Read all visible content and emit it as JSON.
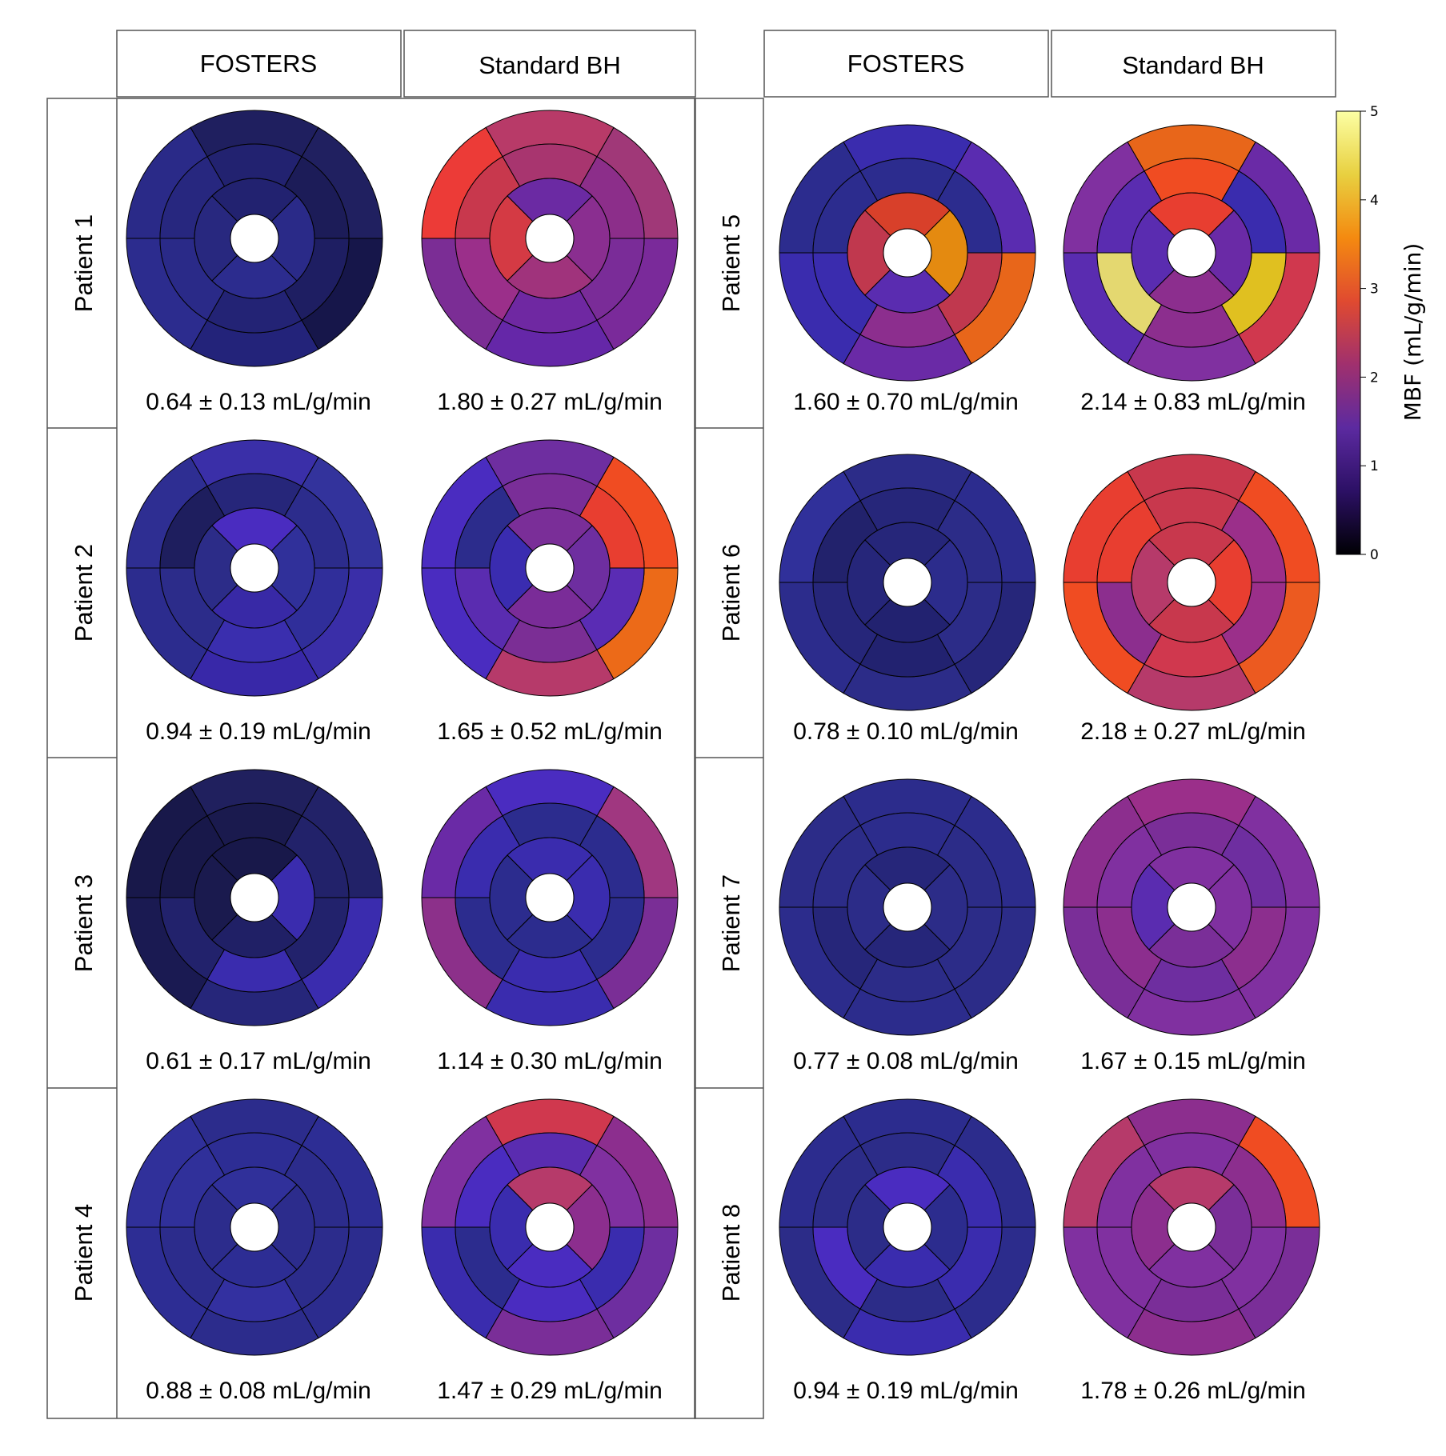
{
  "columns": {
    "left": [
      "FOSTERS",
      "Standard BH"
    ],
    "right": [
      "FOSTERS",
      "Standard BH"
    ]
  },
  "patients": [
    {
      "label": "Patient 1",
      "fosters": "0.64 ± 0.13 mL/g/min",
      "standard_bh": "1.80 ± 0.27 mL/g/min"
    },
    {
      "label": "Patient 2",
      "fosters": "0.94 ± 0.19 mL/g/min",
      "standard_bh": "1.65 ± 0.52 mL/g/min"
    },
    {
      "label": "Patient 3",
      "fosters": "0.61 ± 0.17 mL/g/min",
      "standard_bh": "1.14 ± 0.30 mL/g/min"
    },
    {
      "label": "Patient 4",
      "fosters": "0.88 ± 0.08 mL/g/min",
      "standard_bh": "1.47 ± 0.29 mL/g/min"
    },
    {
      "label": "Patient 5",
      "fosters": "1.60 ± 0.70 mL/g/min",
      "standard_bh": "2.14 ± 0.83 mL/g/min"
    },
    {
      "label": "Patient 6",
      "fosters": "0.78 ± 0.10 mL/g/min",
      "standard_bh": "2.18 ± 0.27 mL/g/min"
    },
    {
      "label": "Patient 7",
      "fosters": "0.77 ± 0.08 mL/g/min",
      "standard_bh": "1.67 ± 0.15 mL/g/min"
    },
    {
      "label": "Patient 8",
      "fosters": "0.94 ± 0.19 mL/g/min",
      "standard_bh": "1.78 ± 0.26 mL/g/min"
    }
  ],
  "bullseye_segment_colors": {
    "P1_F": [
      "#202060",
      "#1f1f5f",
      "#2a2a88",
      "#2c2c8e",
      "#23237a",
      "#16164a",
      "#1c1c58",
      "#222270",
      "#27277f",
      "#2a2a88",
      "#232375",
      "#1e1e62",
      "#222270",
      "#28287f",
      "#2c2c8e",
      "#2a2a88"
    ],
    "P1_B": [
      "#a03878",
      "#b83a68",
      "#ec3b37",
      "#7b2d95",
      "#6527a8",
      "#7a2a9a",
      "#8c2e8a",
      "#a8356f",
      "#c8384d",
      "#9b2f8a",
      "#6f28a2",
      "#7a2c98",
      "#6b2aa3",
      "#d43a44",
      "#a0337c",
      "#8a2e90"
    ],
    "P2_F": [
      "#33339c",
      "#3a2fa8",
      "#2e2e92",
      "#2c2c8e",
      "#3828a8",
      "#3a2ea8",
      "#2c2c8c",
      "#26267a",
      "#1e1e5e",
      "#2c2c8a",
      "#3a2eae",
      "#302e9a",
      "#4a2cc0",
      "#2c2c88",
      "#3829a6",
      "#30309a"
    ],
    "P2_B": [
      "#f04c22",
      "#6e2ea0",
      "#4a2cc0",
      "#4a2cc0",
      "#b63a6a",
      "#ec6a18",
      "#e83e30",
      "#7a2e98",
      "#2c2c8c",
      "#5a2cb0",
      "#7b2e95",
      "#5a2cb4",
      "#7a2e98",
      "#3a2cb0",
      "#7a2c98",
      "#6e2ea0"
    ],
    "P3_F": [
      "#222268",
      "#20205e",
      "#18184a",
      "#1a1a52",
      "#26267a",
      "#3a2cae",
      "#22226a",
      "#1a1a4e",
      "#18184a",
      "#22226c",
      "#3a2cae",
      "#22226c",
      "#18184a",
      "#1a1a4e",
      "#202066",
      "#3a2cae"
    ],
    "P3_B": [
      "#a03780",
      "#4a2cc0",
      "#6a2aa6",
      "#8c308a",
      "#3a2cae",
      "#7a2e96",
      "#2c2c8e",
      "#2c2c8e",
      "#3a2cae",
      "#2c2c8e",
      "#3a2cae",
      "#2c2c8e",
      "#3a2cae",
      "#2c2c8e",
      "#2c2c8e",
      "#3a2cae"
    ],
    "P4_F": [
      "#2d2d94",
      "#2c2c8c",
      "#30309a",
      "#2d2d94",
      "#2c2c8c",
      "#2c2c8e",
      "#2c2c8c",
      "#2d2d94",
      "#30309a",
      "#2c2c8c",
      "#3330a0",
      "#2c2c8c",
      "#30309a",
      "#2c2c8c",
      "#2d2d94",
      "#2c2c8c"
    ],
    "P4_B": [
      "#8c2e8e",
      "#d0384e",
      "#8030a0",
      "#3a2cae",
      "#7a2e98",
      "#6e2ea0",
      "#8030a0",
      "#5a2cb0",
      "#4a2cc0",
      "#2c2c8e",
      "#4a2cc0",
      "#3a2cae",
      "#b63a6a",
      "#3a2cae",
      "#4a2cc0",
      "#8c2e8e"
    ],
    "P5_F": [
      "#5a2cb0",
      "#3a2cae",
      "#2c2c8e",
      "#3a2cae",
      "#6a2aa6",
      "#e8661a",
      "#2c2c8e",
      "#2c2c8e",
      "#2c2c8e",
      "#3a2cae",
      "#8c2e8e",
      "#c0384e",
      "#d8402a",
      "#c0384e",
      "#5a2cb0",
      "#e48a10"
    ],
    "P5_B": [
      "#6a2aa6",
      "#e8661a",
      "#8030a0",
      "#5a2cb0",
      "#8030a0",
      "#d0384e",
      "#3a2cae",
      "#f04c22",
      "#5a2cb0",
      "#e4d870",
      "#8c2e8e",
      "#e0c020",
      "#e83e30",
      "#5a2cb0",
      "#8c2e8e",
      "#6a2aa6"
    ],
    "P6_F": [
      "#2c2c8e",
      "#2c2c88",
      "#30309a",
      "#2c2c8c",
      "#2c2c88",
      "#26267a",
      "#2c2c88",
      "#26267a",
      "#22226c",
      "#26267a",
      "#222270",
      "#2c2c88",
      "#26267a",
      "#26267a",
      "#222270",
      "#2c2c8c"
    ],
    "P6_B": [
      "#f04c22",
      "#c8384d",
      "#e83e30",
      "#f04c22",
      "#b63a6a",
      "#ec5a20",
      "#9b2f8a",
      "#c8384d",
      "#e83e30",
      "#8c2e8e",
      "#d0384e",
      "#9b2f8a",
      "#c8384d",
      "#b63a6a",
      "#c8384d",
      "#e83e30"
    ],
    "P7_F": [
      "#2c2c8c",
      "#2c2c8c",
      "#2c2c88",
      "#2c2c8c",
      "#2c2c8c",
      "#2c2c88",
      "#2c2c88",
      "#2c2c8c",
      "#2c2c88",
      "#26267a",
      "#2c2c88",
      "#2c2c88",
      "#26267a",
      "#2c2c88",
      "#26267a",
      "#2c2c88"
    ],
    "P7_B": [
      "#8030a0",
      "#9b2f8a",
      "#8c2e8e",
      "#7a2e98",
      "#8030a0",
      "#8030a0",
      "#6e2ea0",
      "#7a2e98",
      "#8030a0",
      "#8c2e8e",
      "#6e2ea0",
      "#8c2e8e",
      "#8030a0",
      "#5a2cb0",
      "#7a2e98",
      "#8030a0"
    ],
    "P8_F": [
      "#2c2c8c",
      "#2c2c8e",
      "#2c2c8e",
      "#2c2c88",
      "#3a2cae",
      "#2c2c8c",
      "#3a2cae",
      "#2c2c88",
      "#2c2c88",
      "#4a2cc0",
      "#2c2c88",
      "#3a2cae",
      "#4a2cc0",
      "#2c2c88",
      "#3a2cae",
      "#2c2c8e"
    ],
    "P8_B": [
      "#f04c22",
      "#8c2e8e",
      "#b63a6a",
      "#8030a0",
      "#8c2e8e",
      "#7a2e98",
      "#8c2e8e",
      "#8030a0",
      "#8030a0",
      "#8030a0",
      "#7a2e98",
      "#8030a0",
      "#b63a6a",
      "#8c2e8e",
      "#8030a0",
      "#7a2e98"
    ]
  },
  "colorbar": {
    "label": "MBF (mL/g/min)",
    "ticks": [
      "0",
      "1",
      "2",
      "3",
      "4",
      "5"
    ],
    "range": [
      0,
      5
    ],
    "stops": [
      "#000004",
      "#2c1065",
      "#5c2aa0",
      "#a0306e",
      "#e04a30",
      "#f48a10",
      "#e8d040",
      "#fcffa4"
    ]
  }
}
